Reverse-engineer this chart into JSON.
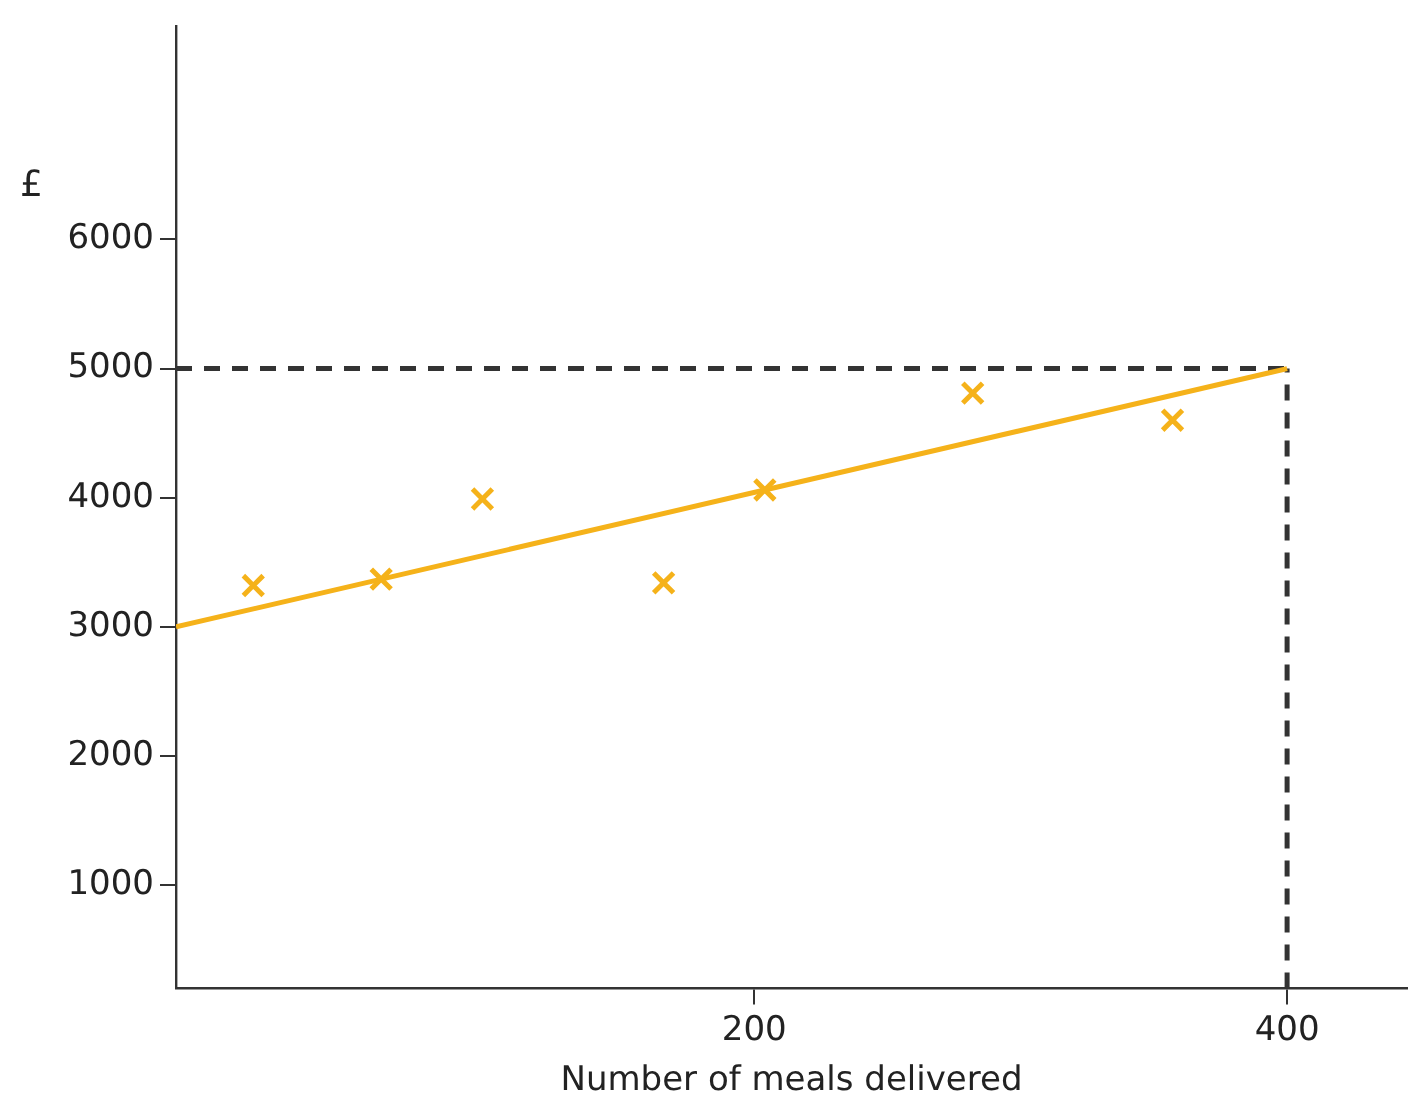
{
  "chart_data": {
    "type": "scatter",
    "xlabel": "Number of meals delivered",
    "ylabel": "£",
    "xlim": [
      -17,
      445
    ],
    "xticks": [
      200,
      400
    ],
    "ylim": [
      200,
      7650
    ],
    "yticks": [
      1000,
      2000,
      3000,
      4000,
      5000,
      6000
    ],
    "grid": false,
    "legend": false,
    "series": [
      {
        "color": "#f5b21a",
        "marker": "cross",
        "x": [
          12,
          60,
          98,
          166,
          204,
          282,
          357
        ],
        "values": [
          3320,
          3370,
          3990,
          3340,
          4060,
          4810,
          4600
        ]
      },
      {
        "type": "line",
        "color": "#f5b21a",
        "marker": "none",
        "line_style": "solid",
        "x": [
          -17,
          400
        ],
        "values": [
          3000,
          5000
        ]
      },
      {
        "type": "line",
        "color": "#333333",
        "marker": "none",
        "line_style": "dashed",
        "x": [
          -17,
          400
        ],
        "values": [
          5000,
          5000
        ]
      },
      {
        "type": "line",
        "color": "#333333",
        "marker": "none",
        "line_style": "dashed",
        "x": [
          400,
          400
        ],
        "values": [
          200,
          5000
        ]
      }
    ]
  }
}
